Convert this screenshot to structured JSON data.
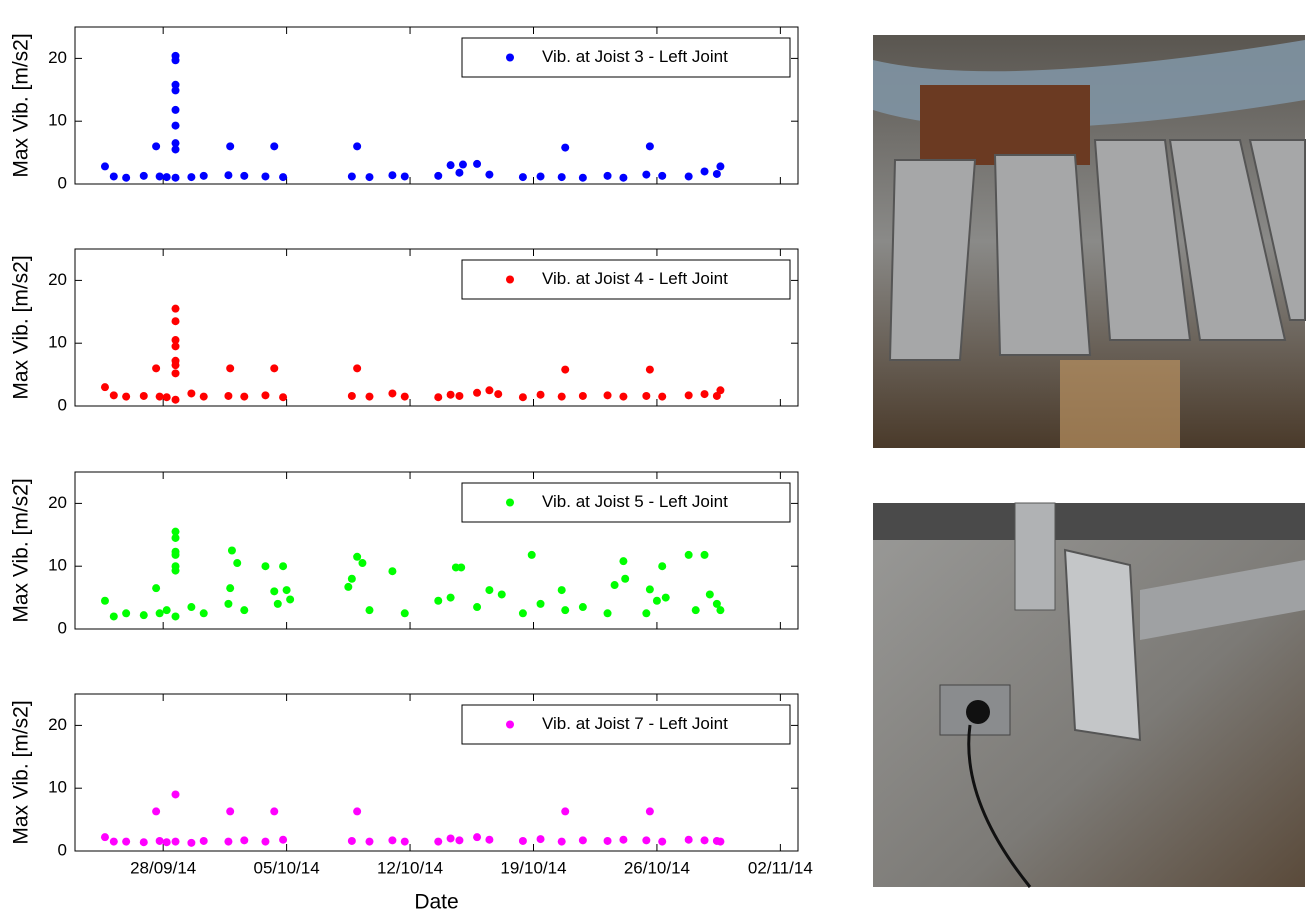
{
  "chart_data": [
    {
      "type": "scatter",
      "ylabel": "Max Vib. [m/s2]",
      "legend": "upper right",
      "xlim": [
        735865,
        735906
      ],
      "xticks": [
        735870,
        735877,
        735884,
        735891,
        735898,
        735905
      ],
      "ylim": [
        0,
        25
      ],
      "yticks": [
        0,
        10,
        20
      ],
      "series": [
        {
          "name": "Vib. at Joist 3 - Left Joint",
          "color": "#0000ff",
          "x": [
            735866.7,
            735867.2,
            735867.9,
            735868.9,
            735869.6,
            735869.8,
            735870.2,
            735870.7,
            735870.7,
            735870.7,
            735870.7,
            735870.7,
            735870.7,
            735870.7,
            735870.7,
            735870.7,
            735871.6,
            735872.3,
            735873.7,
            735873.8,
            735874.6,
            735875.8,
            735876.3,
            735876.8,
            735880.7,
            735881.0,
            735881.7,
            735883.0,
            735883.7,
            735885.6,
            735886.3,
            735886.8,
            735887.0,
            735887.8,
            735888.5,
            735890.4,
            735891.4,
            735892.6,
            735892.8,
            735893.8,
            735895.2,
            735896.1,
            735897.4,
            735897.6,
            735898.3,
            735899.8,
            735900.7,
            735901.4,
            735901.6
          ],
          "values": [
            2.8,
            1.2,
            1.0,
            1.3,
            6.0,
            1.2,
            1.1,
            1.0,
            5.5,
            6.5,
            9.3,
            11.8,
            14.9,
            15.8,
            19.7,
            20.4,
            1.1,
            1.3,
            1.4,
            6.0,
            1.3,
            1.2,
            6.0,
            1.1,
            1.2,
            6.0,
            1.1,
            1.4,
            1.2,
            1.3,
            3.0,
            1.8,
            3.1,
            3.2,
            1.5,
            1.1,
            1.2,
            1.1,
            5.8,
            1.0,
            1.3,
            1.0,
            1.5,
            6.0,
            1.3,
            1.2,
            2.0,
            1.6,
            2.8
          ]
        }
      ]
    },
    {
      "type": "scatter",
      "ylabel": "Max Vib. [m/s2]",
      "legend": "upper right",
      "xlim": [
        735865,
        735906
      ],
      "xticks": [
        735870,
        735877,
        735884,
        735891,
        735898,
        735905
      ],
      "ylim": [
        0,
        25
      ],
      "yticks": [
        0,
        10,
        20
      ],
      "series": [
        {
          "name": "Vib. at Joist 4 - Left Joint",
          "color": "#ff0000",
          "x": [
            735866.7,
            735867.2,
            735867.9,
            735868.9,
            735869.6,
            735869.8,
            735870.2,
            735870.7,
            735870.7,
            735870.7,
            735870.7,
            735870.7,
            735870.7,
            735870.7,
            735870.7,
            735871.6,
            735872.3,
            735873.7,
            735873.8,
            735874.6,
            735875.8,
            735876.3,
            735876.8,
            735880.7,
            735881.0,
            735881.7,
            735883.0,
            735883.7,
            735885.6,
            735886.3,
            735886.8,
            735887.8,
            735888.5,
            735889.0,
            735890.4,
            735891.4,
            735892.6,
            735892.8,
            735893.8,
            735895.2,
            735896.1,
            735897.4,
            735897.6,
            735898.3,
            735899.8,
            735900.7,
            735901.4,
            735901.6
          ],
          "values": [
            3.0,
            1.7,
            1.5,
            1.6,
            6.0,
            1.5,
            1.4,
            1.0,
            5.2,
            6.5,
            7.2,
            9.5,
            10.5,
            13.5,
            15.5,
            2.0,
            1.5,
            1.6,
            6.0,
            1.5,
            1.7,
            6.0,
            1.4,
            1.6,
            6.0,
            1.5,
            2.0,
            1.5,
            1.4,
            1.8,
            1.6,
            2.1,
            2.5,
            1.9,
            1.4,
            1.8,
            1.5,
            5.8,
            1.6,
            1.7,
            1.5,
            1.6,
            5.8,
            1.5,
            1.7,
            1.9,
            1.6,
            2.5
          ]
        }
      ]
    },
    {
      "type": "scatter",
      "ylabel": "Max Vib. [m/s2]",
      "legend": "upper right",
      "xlim": [
        735865,
        735906
      ],
      "xticks": [
        735870,
        735877,
        735884,
        735891,
        735898,
        735905
      ],
      "ylim": [
        0,
        25
      ],
      "yticks": [
        0,
        10,
        20
      ],
      "series": [
        {
          "name": "Vib. at Joist 5 - Left Joint",
          "color": "#00ff00",
          "x": [
            735866.7,
            735867.2,
            735867.9,
            735868.9,
            735869.6,
            735869.8,
            735870.2,
            735870.7,
            735870.7,
            735870.7,
            735870.7,
            735870.7,
            735870.7,
            735870.7,
            735871.6,
            735872.3,
            735873.7,
            735873.8,
            735873.9,
            735874.2,
            735874.6,
            735875.8,
            735876.3,
            735876.5,
            735876.8,
            735877.0,
            735877.2,
            735880.5,
            735880.7,
            735881.0,
            735881.3,
            735881.7,
            735883.0,
            735883.7,
            735885.6,
            735886.3,
            735886.6,
            735886.9,
            735887.8,
            735888.5,
            735889.2,
            735890.4,
            735890.9,
            735891.4,
            735892.6,
            735892.8,
            735893.8,
            735895.2,
            735895.6,
            735896.1,
            735896.2,
            735897.4,
            735897.6,
            735898.0,
            735898.3,
            735898.5,
            735899.8,
            735900.2,
            735900.7,
            735901.0,
            735901.4,
            735901.6
          ],
          "values": [
            4.5,
            2.0,
            2.5,
            2.2,
            6.5,
            2.5,
            3.0,
            2.0,
            9.3,
            10.0,
            11.8,
            12.3,
            14.5,
            15.5,
            3.5,
            2.5,
            4.0,
            6.5,
            12.5,
            10.5,
            3.0,
            10.0,
            6.0,
            4.0,
            10.0,
            6.2,
            4.7,
            6.7,
            8.0,
            11.5,
            10.5,
            3.0,
            9.2,
            2.5,
            4.5,
            5.0,
            9.8,
            9.8,
            3.5,
            6.2,
            5.5,
            2.5,
            11.8,
            4.0,
            6.2,
            3.0,
            3.5,
            2.5,
            7.0,
            10.8,
            8.0,
            2.5,
            6.3,
            4.5,
            10.0,
            5.0,
            11.8,
            3.0,
            11.8,
            5.5,
            4.0,
            3.0
          ]
        }
      ]
    },
    {
      "type": "scatter",
      "ylabel": "Max Vib. [m/s2]",
      "xlabel": "Date",
      "legend": "upper right",
      "xlim": [
        735865,
        735906
      ],
      "xticks": [
        {
          "value": 735870,
          "label": "28/09/14"
        },
        {
          "value": 735877,
          "label": "05/10/14"
        },
        {
          "value": 735884,
          "label": "12/10/14"
        },
        {
          "value": 735891,
          "label": "19/10/14"
        },
        {
          "value": 735898,
          "label": "26/10/14"
        },
        {
          "value": 735905,
          "label": "02/11/14"
        }
      ],
      "ylim": [
        0,
        25
      ],
      "yticks": [
        0,
        10,
        20
      ],
      "series": [
        {
          "name": "Vib. at Joist 7 - Left Joint",
          "color": "#ff00ff",
          "x": [
            735866.7,
            735867.2,
            735867.9,
            735868.9,
            735869.6,
            735869.8,
            735870.2,
            735870.7,
            735870.7,
            735871.6,
            735872.3,
            735873.7,
            735873.8,
            735874.6,
            735875.8,
            735876.3,
            735876.8,
            735880.7,
            735881.0,
            735881.7,
            735883.0,
            735883.7,
            735885.6,
            735886.3,
            735886.8,
            735887.8,
            735888.5,
            735890.4,
            735891.4,
            735892.6,
            735892.8,
            735893.8,
            735895.2,
            735896.1,
            735897.4,
            735897.6,
            735898.3,
            735899.8,
            735900.7,
            735901.4,
            735901.6
          ],
          "values": [
            2.2,
            1.5,
            1.5,
            1.4,
            6.3,
            1.6,
            1.4,
            1.5,
            9.0,
            1.3,
            1.6,
            1.5,
            6.3,
            1.7,
            1.5,
            6.3,
            1.8,
            1.6,
            6.3,
            1.5,
            1.7,
            1.5,
            1.5,
            2.0,
            1.7,
            2.2,
            1.8,
            1.6,
            1.9,
            1.5,
            6.3,
            1.7,
            1.6,
            1.8,
            1.7,
            6.3,
            1.5,
            1.8,
            1.7,
            1.6,
            1.5
          ]
        }
      ]
    }
  ]
}
